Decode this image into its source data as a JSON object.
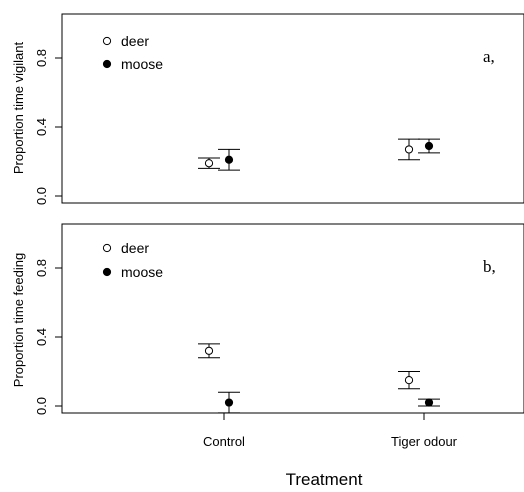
{
  "chart_data": [
    {
      "type": "scatter",
      "panel_label": "a,",
      "ylabel": "Proportion time vigilant",
      "ylim": [
        0,
        1
      ],
      "yticks": [
        "0.0",
        "0.4",
        "0.8"
      ],
      "categories": [
        "Control",
        "Tiger odour"
      ],
      "legend_position": "top-left",
      "series": [
        {
          "name": "deer",
          "marker": "open-circle",
          "values": [
            0.19,
            0.27
          ],
          "err_low": [
            0.16,
            0.21
          ],
          "err_high": [
            0.22,
            0.33
          ]
        },
        {
          "name": "moose",
          "marker": "filled-circle",
          "values": [
            0.21,
            0.29
          ],
          "err_low": [
            0.15,
            0.25
          ],
          "err_high": [
            0.27,
            0.33
          ]
        }
      ]
    },
    {
      "type": "scatter",
      "panel_label": "b,",
      "ylabel": "Proportion time feeding",
      "ylim": [
        0,
        1
      ],
      "yticks": [
        "0.0",
        "0.4",
        "0.8"
      ],
      "categories": [
        "Control",
        "Tiger odour"
      ],
      "legend_position": "top-left",
      "series": [
        {
          "name": "deer",
          "marker": "open-circle",
          "values": [
            0.32,
            0.15
          ],
          "err_low": [
            0.28,
            0.1
          ],
          "err_high": [
            0.36,
            0.2
          ]
        },
        {
          "name": "moose",
          "marker": "filled-circle",
          "values": [
            0.02,
            0.02
          ],
          "err_low": [
            -0.04,
            0.0
          ],
          "err_high": [
            0.08,
            0.04
          ]
        }
      ]
    }
  ],
  "xlabel": "Treatment"
}
